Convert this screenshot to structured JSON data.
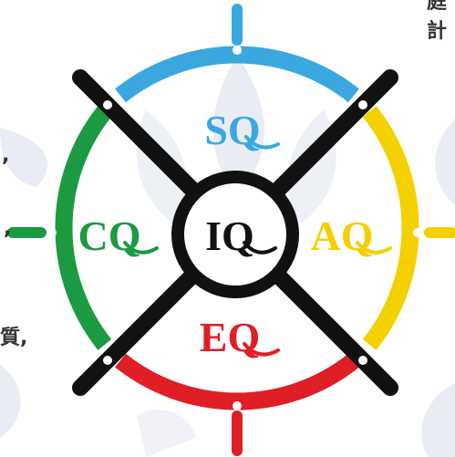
{
  "diagram": {
    "quadrants": [
      {
        "key": "top",
        "label": "SQ",
        "color": "#3aa8df"
      },
      {
        "key": "right",
        "label": "AQ",
        "color": "#f5d000"
      },
      {
        "key": "bottom",
        "label": "EQ",
        "color": "#e01e26"
      },
      {
        "key": "left",
        "label": "CQ",
        "color": "#1c9a42"
      }
    ],
    "center": {
      "label": "IQ",
      "color": "#111111"
    },
    "cross_color": "#111111",
    "watermark_color": "#e9ecf3"
  },
  "side_text": {
    "top_right": [
      "庭",
      "計"
    ],
    "left": [
      ",",
      ",",
      "質,"
    ]
  }
}
